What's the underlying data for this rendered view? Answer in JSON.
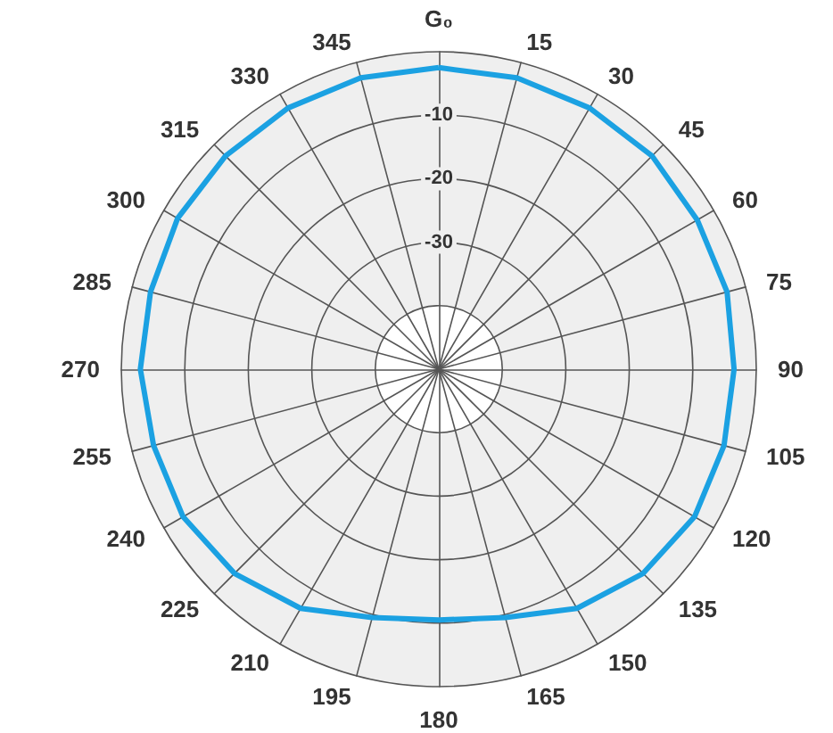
{
  "chart_data": {
    "type": "radar",
    "categories": [
      "G₀",
      "15",
      "30",
      "45",
      "60",
      "75",
      "90",
      "105",
      "120",
      "135",
      "150",
      "165",
      "180",
      "195",
      "210",
      "225",
      "240",
      "255",
      "270",
      "285",
      "300",
      "315",
      "330",
      "345"
    ],
    "series": [
      {
        "color": "#1ba1e2",
        "values": [
          -2.5,
          -2.5,
          -2.5,
          -2.5,
          -3,
          -3,
          -3.5,
          -3.5,
          -3.5,
          -4.5,
          -6.5,
          -9.5,
          -10.5,
          -9.5,
          -6.5,
          -4.5,
          -3.5,
          -3.5,
          -3,
          -3,
          -2.5,
          -2.5,
          -2.5,
          -2.5
        ]
      }
    ],
    "ylim": [
      -50,
      0
    ],
    "yticks": [
      -30,
      -20,
      -10
    ],
    "grid": true,
    "marker": "none",
    "line_style": "solid"
  }
}
